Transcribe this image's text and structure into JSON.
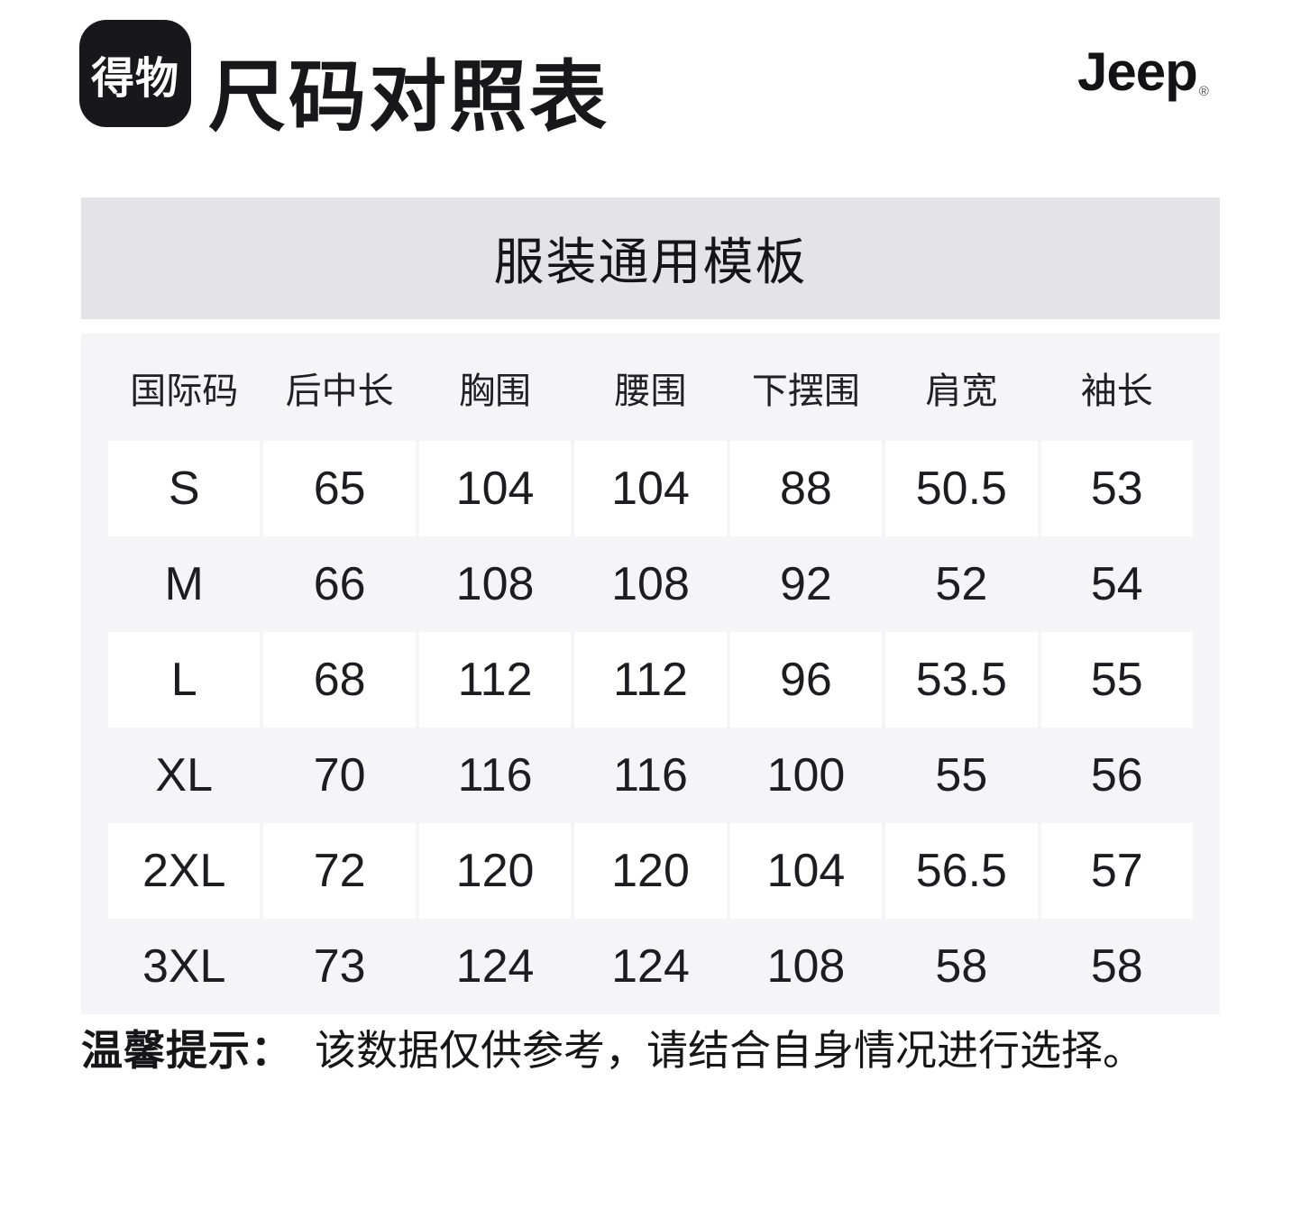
{
  "header": {
    "app_logo_text": "得物",
    "page_title": "尺码对照表",
    "brand_logo_text": "Jeep",
    "brand_registered_mark": "®"
  },
  "template_banner": {
    "title": "服装通用模板"
  },
  "table": {
    "columns": [
      "国际码",
      "后中长",
      "胸围",
      "腰围",
      "下摆围",
      "肩宽",
      "袖长"
    ],
    "rows": [
      [
        "S",
        "65",
        "104",
        "104",
        "88",
        "50.5",
        "53"
      ],
      [
        "M",
        "66",
        "108",
        "108",
        "92",
        "52",
        "54"
      ],
      [
        "L",
        "68",
        "112",
        "112",
        "96",
        "53.5",
        "55"
      ],
      [
        "XL",
        "70",
        "116",
        "116",
        "100",
        "55",
        "56"
      ],
      [
        "2XL",
        "72",
        "120",
        "120",
        "104",
        "56.5",
        "57"
      ],
      [
        "3XL",
        "73",
        "124",
        "124",
        "108",
        "58",
        "58"
      ]
    ]
  },
  "note": {
    "label": "温馨提示：",
    "text": "该数据仅供参考，请结合自身情况进行选择。"
  },
  "colors": {
    "banner_bg": "#e3e3e8",
    "table_bg": "#f5f5f8",
    "cell_bg": "#ffffff",
    "text": "#1a1a1d",
    "logo_bg": "#17171c"
  },
  "chart_data": {
    "type": "table",
    "title": "服装通用模板",
    "subtitle": "尺码对照表",
    "brand": "Jeep",
    "columns": [
      "国际码",
      "后中长",
      "胸围",
      "腰围",
      "下摆围",
      "肩宽",
      "袖长"
    ],
    "rows": [
      {
        "size": "S",
        "back_length": 65,
        "chest": 104,
        "waist": 104,
        "hem": 88,
        "shoulder": 50.5,
        "sleeve": 53
      },
      {
        "size": "M",
        "back_length": 66,
        "chest": 108,
        "waist": 108,
        "hem": 92,
        "shoulder": 52,
        "sleeve": 54
      },
      {
        "size": "L",
        "back_length": 68,
        "chest": 112,
        "waist": 112,
        "hem": 96,
        "shoulder": 53.5,
        "sleeve": 55
      },
      {
        "size": "XL",
        "back_length": 70,
        "chest": 116,
        "waist": 116,
        "hem": 100,
        "shoulder": 55,
        "sleeve": 56
      },
      {
        "size": "2XL",
        "back_length": 72,
        "chest": 120,
        "waist": 120,
        "hem": 104,
        "shoulder": 56.5,
        "sleeve": 57
      },
      {
        "size": "3XL",
        "back_length": 73,
        "chest": 124,
        "waist": 124,
        "hem": 108,
        "shoulder": 58,
        "sleeve": 58
      }
    ],
    "footnote": "温馨提示：该数据仅供参考，请结合自身情况进行选择。"
  }
}
